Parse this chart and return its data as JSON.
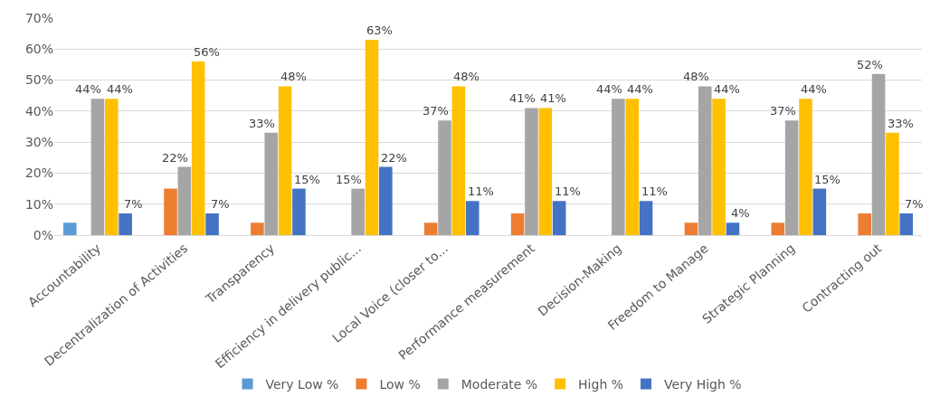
{
  "chart_data": {
    "type": "bar",
    "categories": [
      "Accountability",
      "Decentralization of Activities",
      "Transparency",
      "Efficiency in delivery public...",
      "Local Voice (closer to...",
      "Performance measurement",
      "Decision-Making",
      "Freedom to Manage",
      "Strategic Planning",
      "Contracting out"
    ],
    "series": [
      {
        "name": "Very Low %",
        "color": "#5b9bd5",
        "values": [
          4,
          null,
          null,
          null,
          null,
          null,
          null,
          null,
          null,
          null
        ]
      },
      {
        "name": "Low %",
        "color": "#ed7d31",
        "values": [
          null,
          15,
          4,
          null,
          4,
          7,
          null,
          4,
          4,
          7
        ]
      },
      {
        "name": "Moderate %",
        "color": "#a5a5a5",
        "values": [
          44,
          22,
          33,
          15,
          37,
          41,
          44,
          48,
          37,
          52
        ],
        "value_labels": [
          "44%",
          "22%",
          "33%",
          "15%",
          "37%",
          "41%",
          "44%",
          "48%",
          "37%",
          "52%"
        ]
      },
      {
        "name": "High %",
        "color": "#ffc000",
        "values": [
          44,
          56,
          48,
          63,
          48,
          41,
          44,
          44,
          44,
          33
        ],
        "value_labels": [
          "44%",
          "56%",
          "48%",
          "63%",
          "48%",
          "41%",
          "44%",
          "44%",
          "44%",
          "33%"
        ]
      },
      {
        "name": "Very High %",
        "color": "#4472c4",
        "values": [
          7,
          7,
          15,
          22,
          11,
          11,
          11,
          4,
          15,
          7
        ],
        "value_labels": [
          "7%",
          "7%",
          "15%",
          "22%",
          "11%",
          "11%",
          "11%",
          "4%",
          "15%",
          "7%"
        ]
      }
    ],
    "ylim": [
      0,
      70
    ],
    "yticks": [
      {
        "value": 0,
        "label": "0%"
      },
      {
        "value": 10,
        "label": "10%"
      },
      {
        "value": 20,
        "label": "20%"
      },
      {
        "value": 30,
        "label": "30%"
      },
      {
        "value": 40,
        "label": "40%"
      },
      {
        "value": 50,
        "label": "50%"
      },
      {
        "value": 60,
        "label": "60%"
      },
      {
        "value": 70,
        "label": "70%"
      }
    ],
    "grid": "y",
    "legend": "bottom"
  }
}
